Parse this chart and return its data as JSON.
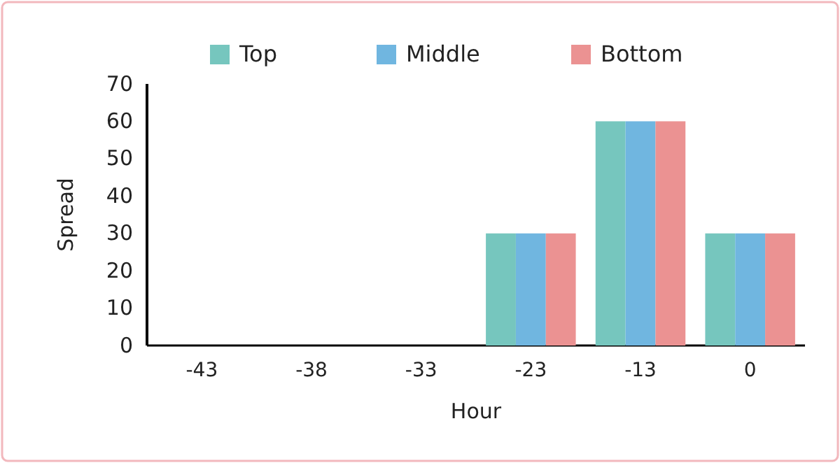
{
  "chart_data": {
    "type": "bar",
    "xlabel": "Hour",
    "ylabel": "Spread",
    "categories": [
      "-43",
      "-38",
      "-33",
      "-23",
      "-13",
      "0"
    ],
    "series": [
      {
        "name": "Top",
        "color": "#76c6be",
        "values": [
          0,
          0,
          0,
          30,
          60,
          30
        ]
      },
      {
        "name": "Middle",
        "color": "#70b6e0",
        "values": [
          0,
          0,
          0,
          30,
          60,
          30
        ]
      },
      {
        "name": "Bottom",
        "color": "#eb9292",
        "values": [
          0,
          0,
          0,
          30,
          60,
          30
        ]
      }
    ],
    "ylim": [
      0,
      70
    ],
    "yticks": [
      0,
      10,
      20,
      30,
      40,
      50,
      60,
      70
    ],
    "grid": false,
    "legend": "top"
  }
}
